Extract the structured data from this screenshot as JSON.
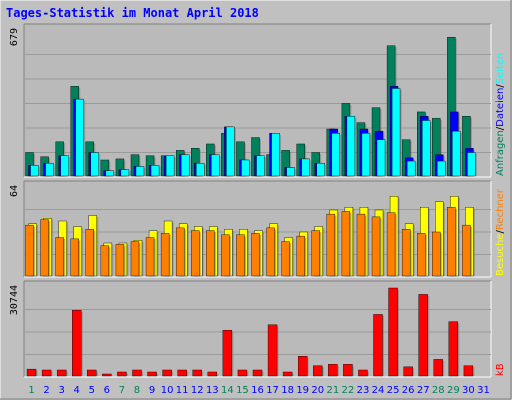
{
  "chart_data": {
    "title": "Tages-Statistik im Monat April 2018",
    "type": "bar",
    "days": [
      "1",
      "2",
      "3",
      "4",
      "5",
      "6",
      "7",
      "8",
      "9",
      "10",
      "11",
      "12",
      "13",
      "14",
      "15",
      "16",
      "17",
      "18",
      "19",
      "20",
      "21",
      "22",
      "23",
      "24",
      "25",
      "26",
      "27",
      "28",
      "29",
      "30",
      "31"
    ],
    "weekend_days": [
      "1",
      "7",
      "8",
      "14",
      "15",
      "21",
      "22",
      "28",
      "29"
    ],
    "legend": {
      "right_top": [
        "Anfragen",
        "/",
        "Dateien",
        "/",
        "Seiten"
      ],
      "right_mid": [
        "Besuche",
        "/",
        "Rechner"
      ],
      "right_bottom": [
        "kB"
      ]
    },
    "panels": [
      {
        "name": "requests",
        "ymax_label": "679",
        "ymax": 679,
        "series": [
          {
            "name": "Anfragen",
            "color": "#00805c",
            "values": [
              110,
              90,
              160,
              420,
              160,
              75,
              80,
              100,
              95,
              95,
              120,
              130,
              150,
              200,
              160,
              180,
              100,
              120,
              150,
              110,
              220,
              340,
              250,
              320,
              610,
              170,
              300,
              270,
              650,
              280,
              0
            ]
          },
          {
            "name": "Dateien",
            "color": "#0000ff",
            "values": [
              50,
              60,
              95,
              360,
              110,
              25,
              30,
              45,
              50,
              95,
              100,
              60,
              100,
              230,
              75,
              95,
              200,
              40,
              80,
              60,
              220,
              280,
              220,
              210,
              420,
              85,
              280,
              100,
              300,
              130,
              0
            ]
          },
          {
            "name": "Seiten",
            "color": "#00ffff",
            "values": [
              50,
              60,
              95,
              360,
              110,
              25,
              30,
              45,
              50,
              95,
              100,
              60,
              100,
              230,
              75,
              95,
              200,
              40,
              80,
              60,
              200,
              280,
              200,
              170,
              410,
              70,
              260,
              70,
              210,
              110,
              0
            ]
          }
        ]
      },
      {
        "name": "visits",
        "ymax_label": "64",
        "ymax": 64,
        "series": [
          {
            "name": "Besuche",
            "color": "#ffff00",
            "values": [
              38,
              42,
              40,
              36,
              44,
              24,
              24,
              26,
              33,
              40,
              38,
              36,
              36,
              34,
              34,
              33,
              38,
              28,
              32,
              36,
              48,
              50,
              50,
              48,
              58,
              38,
              50,
              54,
              58,
              50,
              0
            ]
          },
          {
            "name": "Rechner",
            "color": "#ff8000",
            "values": [
              37,
              41,
              28,
              27,
              34,
              22,
              23,
              25,
              28,
              31,
              35,
              33,
              33,
              30,
              30,
              31,
              35,
              25,
              29,
              33,
              45,
              47,
              45,
              43,
              46,
              34,
              31,
              32,
              50,
              37,
              0
            ]
          }
        ]
      },
      {
        "name": "kb",
        "ymax_label": "30744",
        "ymax": 30744,
        "series": [
          {
            "name": "kB",
            "color": "#ff0000",
            "values": [
              2400,
              2100,
              2100,
              23000,
              2100,
              700,
              1400,
              2100,
              1400,
              2100,
              2100,
              2100,
              1400,
              16000,
              2100,
              2100,
              17900,
              1400,
              6900,
              3600,
              4100,
              4100,
              2100,
              21500,
              30744,
              3200,
              28500,
              5800,
              19000,
              3600,
              0
            ]
          }
        ]
      }
    ]
  },
  "colors": {
    "title": "#0000ff",
    "frame_bg": "#c0c0c0",
    "plot_bg": "#bababa",
    "grid": "#9a9a9a",
    "weekend_label": "#00805c",
    "weekday_label": "#0000ff"
  }
}
